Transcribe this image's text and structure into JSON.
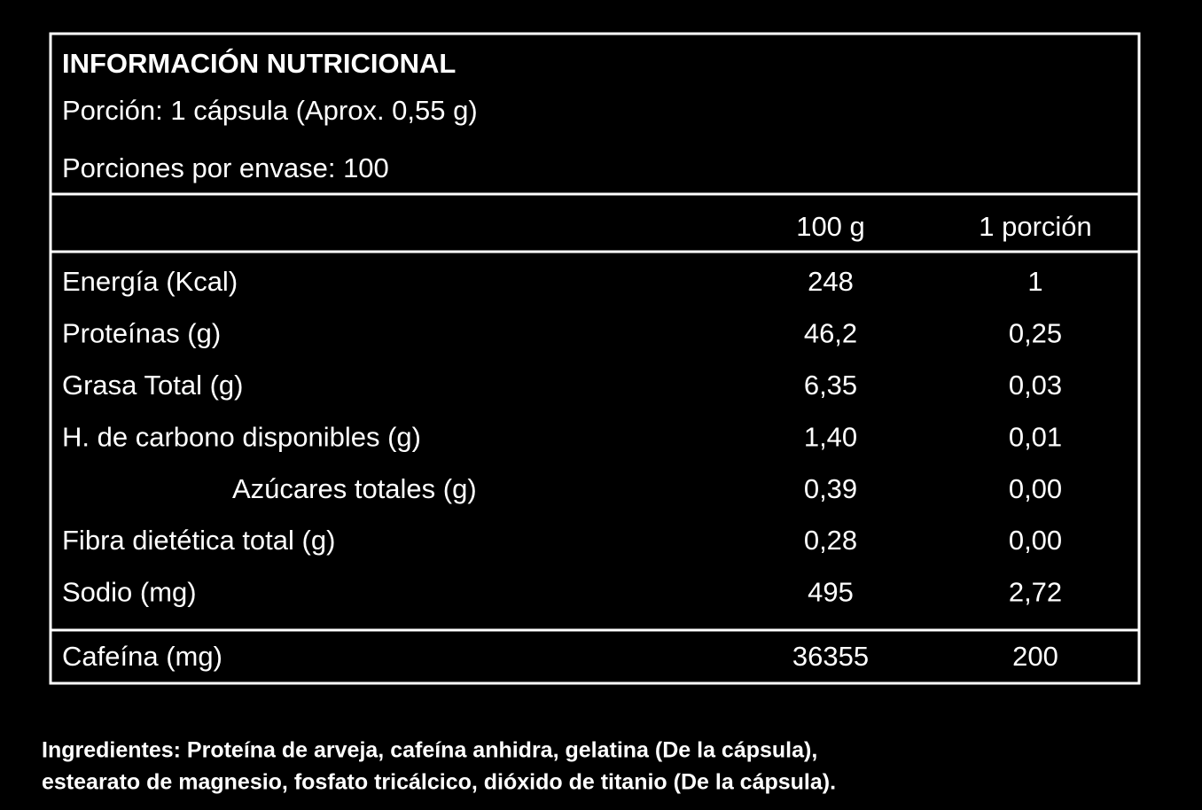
{
  "header": {
    "title": "INFORMACIÓN NUTRICIONAL",
    "serving": "Porción: 1 cápsula (Aprox. 0,55 g)",
    "servings_per_container": "Porciones por envase: 100"
  },
  "table": {
    "columns": [
      "100 g",
      "1 porción"
    ],
    "rows": [
      [
        "Energía (Kcal)",
        "248",
        "1"
      ],
      [
        "Proteínas (g)",
        "46,2",
        "0,25"
      ],
      [
        "Grasa Total (g)",
        "6,35",
        "0,03"
      ],
      [
        "H. de carbono disponibles (g)",
        "1,40",
        "0,01"
      ],
      [
        "Azúcares totales (g)",
        "0,39",
        "0,00"
      ],
      [
        "Fibra dietética total (g)",
        "0,28",
        "0,00"
      ],
      [
        "Sodio (mg)",
        "495",
        "2,72"
      ]
    ],
    "footer_row": [
      "Cafeína (mg)",
      "36355",
      "200"
    ]
  },
  "ingredients": [
    "Ingredientes: Proteína de arveja, cafeína anhidra, gelatina (De la cápsula),",
    "estearato de magnesio, fosfato tricálcico, dióxido de titanio (De la cápsula)."
  ]
}
